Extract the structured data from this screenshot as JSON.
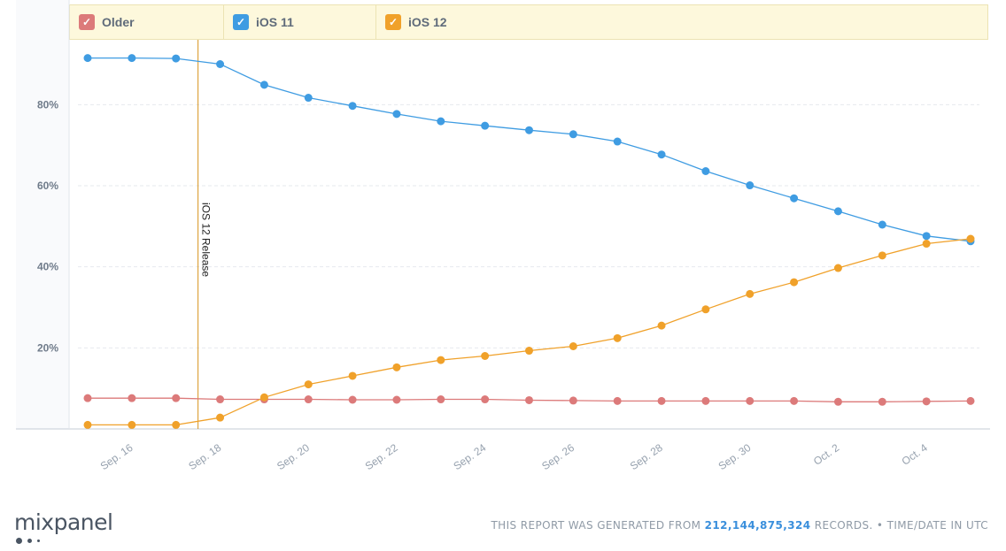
{
  "legend": [
    {
      "label": "Older",
      "color": "#dc7a7a"
    },
    {
      "label": "iOS 11",
      "color": "#3f9ce2"
    },
    {
      "label": "iOS 12",
      "color": "#f0a12a"
    }
  ],
  "annotation": {
    "label": "iOS 12 Release"
  },
  "footer": {
    "prefix": "THIS REPORT WAS GENERATED FROM",
    "count": "212,144,875,324",
    "suffix": "RECORDS. • TIME/DATE IN UTC"
  },
  "brand": {
    "name": "mixpanel"
  },
  "chart_data": {
    "type": "line",
    "x_ticks": [
      "Sep. 16",
      "Sep. 18",
      "Sep. 20",
      "Sep. 22",
      "Sep. 24",
      "Sep. 26",
      "Sep. 28",
      "Sep. 30",
      "Oct. 2",
      "Oct. 4"
    ],
    "x": [
      "Sep. 15",
      "Sep. 16",
      "Sep. 17",
      "Sep. 18",
      "Sep. 19",
      "Sep. 20",
      "Sep. 21",
      "Sep. 22",
      "Sep. 23",
      "Sep. 24",
      "Sep. 25",
      "Sep. 26",
      "Sep. 27",
      "Sep. 28",
      "Sep. 29",
      "Sep. 30",
      "Oct. 1",
      "Oct. 2",
      "Oct. 3",
      "Oct. 4",
      "Oct. 5"
    ],
    "y_ticks": [
      "20%",
      "40%",
      "60%",
      "80%"
    ],
    "y_tick_values": [
      20,
      40,
      60,
      80
    ],
    "ylim": [
      0,
      96
    ],
    "grid": true,
    "legend_position": "top",
    "annotation_x": 17.5,
    "series": [
      {
        "name": "Older",
        "color": "#dc7a7a",
        "values": [
          7.6,
          7.6,
          7.6,
          7.3,
          7.3,
          7.3,
          7.2,
          7.2,
          7.3,
          7.3,
          7.1,
          7.0,
          6.9,
          6.9,
          6.9,
          6.9,
          6.9,
          6.7,
          6.7,
          6.8,
          6.9
        ]
      },
      {
        "name": "iOS 11",
        "color": "#3f9ce2",
        "values": [
          91.5,
          91.5,
          91.4,
          90.0,
          84.9,
          81.7,
          79.7,
          77.7,
          75.9,
          74.8,
          73.7,
          72.7,
          70.9,
          67.7,
          63.6,
          60.1,
          56.9,
          53.7,
          50.4,
          47.6,
          46.3
        ]
      },
      {
        "name": "iOS 12",
        "color": "#f0a12a",
        "values": [
          1.0,
          1.0,
          1.0,
          2.8,
          7.8,
          11.0,
          13.1,
          15.2,
          17.0,
          18.0,
          19.3,
          20.4,
          22.4,
          25.5,
          29.5,
          33.3,
          36.2,
          39.7,
          42.8,
          45.7,
          46.9
        ]
      }
    ]
  }
}
